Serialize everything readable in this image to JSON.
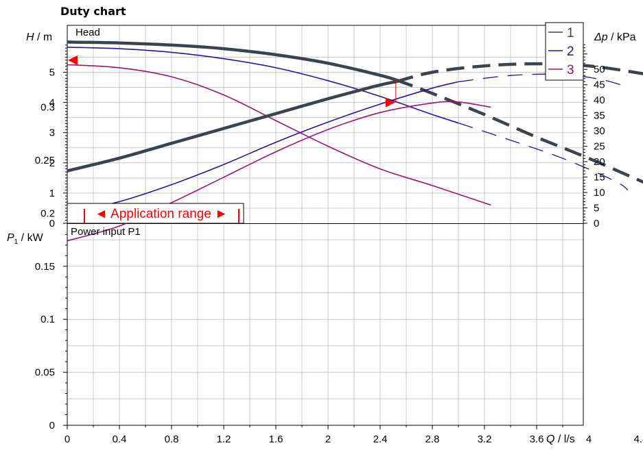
{
  "title": "Duty chart",
  "chart_data": [
    {
      "type": "line",
      "panel_label": "Head",
      "ylabel_symbol": "H",
      "ylabel_unit": "m",
      "ylabel_right_symbol": "Δp",
      "ylabel_right_unit": "kPa",
      "ylim": [
        0,
        6
      ],
      "y_ticks": [
        "0",
        "1",
        "2",
        "3",
        "4",
        "5"
      ],
      "y_right_ticks": [
        "0",
        "5",
        "10",
        "15",
        "20",
        "25",
        "30",
        "35",
        "40",
        "45",
        "50"
      ],
      "grid": true,
      "legend": {
        "placement": "top-right",
        "entries": [
          "1",
          "2",
          "3"
        ]
      },
      "annotation": "◄ Application range ►",
      "series": [
        {
          "name": "1",
          "color": "#3b434d",
          "points": [
            [
              0,
              6.0
            ],
            [
              0.4,
              5.97
            ],
            [
              0.8,
              5.9
            ],
            [
              1.2,
              5.78
            ],
            [
              1.6,
              5.58
            ],
            [
              2.0,
              5.3
            ],
            [
              2.4,
              4.9
            ],
            [
              2.52,
              4.75
            ]
          ],
          "dashed_points": [
            [
              2.52,
              4.75
            ],
            [
              2.8,
              4.3
            ],
            [
              3.2,
              3.6
            ],
            [
              3.6,
              2.85
            ],
            [
              4.0,
              2.15
            ],
            [
              4.4,
              1.4
            ],
            [
              4.5,
              1.25
            ]
          ]
        },
        {
          "name": "2",
          "color": "#2b0fa6",
          "points": [
            [
              0,
              5.83
            ],
            [
              0.4,
              5.78
            ],
            [
              0.8,
              5.66
            ],
            [
              1.2,
              5.45
            ],
            [
              1.6,
              5.15
            ],
            [
              2.0,
              4.72
            ],
            [
              2.4,
              4.2
            ],
            [
              2.8,
              3.6
            ],
            [
              3.0,
              3.32
            ]
          ],
          "dashed_points": [
            [
              3.0,
              3.32
            ],
            [
              3.4,
              2.75
            ],
            [
              3.8,
              2.15
            ],
            [
              4.2,
              1.4
            ],
            [
              4.3,
              1.1
            ]
          ]
        },
        {
          "name": "3",
          "color": "#a0106e",
          "points": [
            [
              0,
              5.25
            ],
            [
              0.4,
              5.15
            ],
            [
              0.8,
              4.85
            ],
            [
              1.2,
              4.25
            ],
            [
              1.6,
              3.4
            ],
            [
              2.0,
              2.55
            ],
            [
              2.4,
              1.8
            ],
            [
              2.8,
              1.25
            ],
            [
              3.25,
              0.6
            ]
          ]
        }
      ]
    },
    {
      "type": "line",
      "panel_label": "Power input P1",
      "ylabel_symbol": "P",
      "ylabel_subscript": "1",
      "ylabel_unit": "kW",
      "ylim": [
        0,
        0.35
      ],
      "y_ticks": [
        "0",
        "0.05",
        "0.1",
        "0.15",
        "0.2",
        "0.25",
        "0.3"
      ],
      "xlabel_symbol": "Q",
      "xlabel_unit": "l/s",
      "xlim": [
        0,
        4.8
      ],
      "x_ticks": [
        "0",
        "0.4",
        "0.8",
        "1.2",
        "1.6",
        "2",
        "2.4",
        "2.8",
        "3.2",
        "3.6",
        "4",
        "4.4"
      ],
      "grid": true,
      "series": [
        {
          "name": "1",
          "color": "#3b434d",
          "points": [
            [
              0,
              0.24
            ],
            [
              0.4,
              0.252
            ],
            [
              0.8,
              0.266
            ],
            [
              1.2,
              0.28
            ],
            [
              1.6,
              0.294
            ],
            [
              2.0,
              0.308
            ],
            [
              2.4,
              0.321
            ],
            [
              2.52,
              0.324
            ]
          ],
          "dashed_points": [
            [
              2.52,
              0.324
            ],
            [
              2.8,
              0.333
            ],
            [
              3.2,
              0.339
            ],
            [
              3.6,
              0.341
            ],
            [
              4.0,
              0.339
            ],
            [
              4.4,
              0.332
            ],
            [
              4.5,
              0.329
            ]
          ]
        },
        {
          "name": "2",
          "color": "#2b0fa6",
          "points": [
            [
              0,
              0.2
            ],
            [
              0.4,
              0.211
            ],
            [
              0.8,
              0.227
            ],
            [
              1.2,
              0.246
            ],
            [
              1.6,
              0.267
            ],
            [
              2.0,
              0.286
            ],
            [
              2.4,
              0.303
            ],
            [
              2.8,
              0.318
            ],
            [
              3.0,
              0.324
            ]
          ],
          "dashed_points": [
            [
              3.0,
              0.324
            ],
            [
              3.4,
              0.33
            ],
            [
              3.8,
              0.331
            ],
            [
              4.1,
              0.326
            ],
            [
              4.3,
              0.319
            ]
          ]
        },
        {
          "name": "3",
          "color": "#a0106e",
          "points": [
            [
              0,
              0.174
            ],
            [
              0.4,
              0.188
            ],
            [
              0.8,
              0.21
            ],
            [
              1.2,
              0.234
            ],
            [
              1.6,
              0.258
            ],
            [
              2.0,
              0.279
            ],
            [
              2.4,
              0.295
            ],
            [
              2.8,
              0.304
            ],
            [
              3.0,
              0.305
            ],
            [
              3.25,
              0.3
            ]
          ]
        }
      ]
    }
  ]
}
